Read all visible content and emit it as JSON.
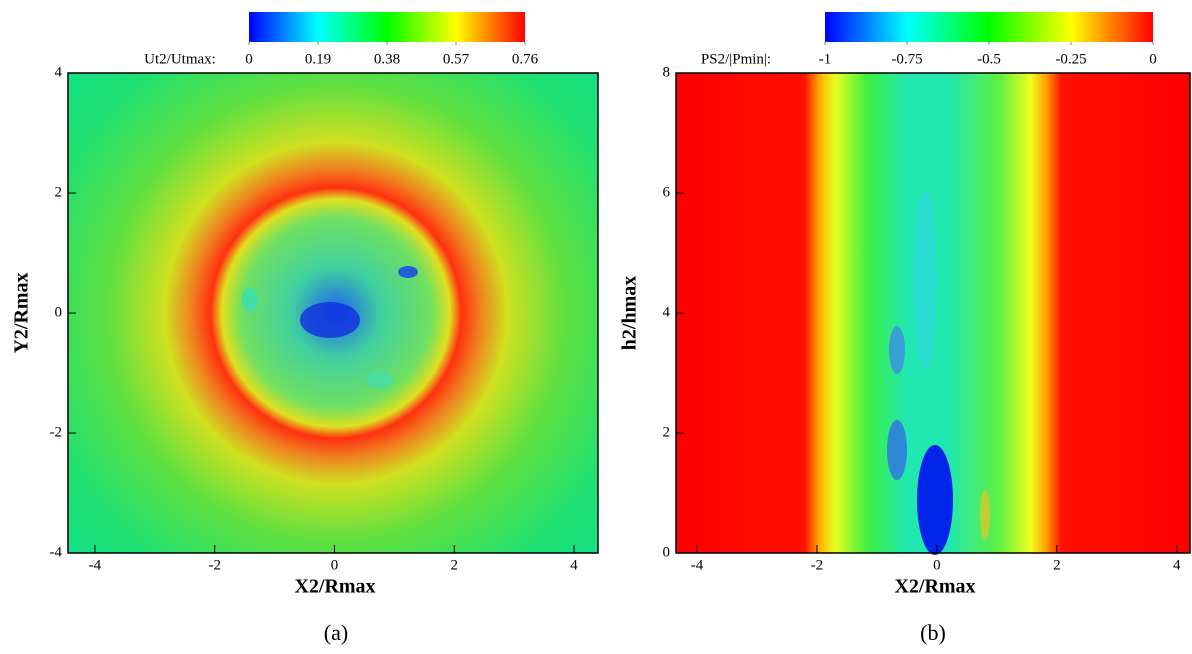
{
  "chart_data": [
    {
      "type": "contour",
      "colorbar_label": "Ut2/Utmax:",
      "clim": [
        0,
        0.76
      ],
      "cticks": [
        0,
        0.19,
        0.38,
        0.57,
        0.76
      ],
      "xlabel": "X2/Rmax",
      "ylabel": "Y2/Rmax",
      "xlim": [
        -4.45,
        4.4
      ],
      "ylim": [
        -4,
        4
      ],
      "xticks": [
        -4,
        -2,
        0,
        2,
        4
      ],
      "yticks": [
        -4,
        -2,
        0,
        2,
        4
      ],
      "caption": "(a)"
    },
    {
      "type": "contour",
      "colorbar_label": "PS2/|Pmin|:",
      "clim": [
        -1,
        0
      ],
      "cticks": [
        -1,
        -0.75,
        -0.5,
        -0.25,
        0
      ],
      "xlabel": "X2/Rmax",
      "ylabel": "h2/hmax",
      "xlim": [
        -4.35,
        4.22
      ],
      "ylim": [
        0,
        8
      ],
      "xticks": [
        -4,
        -2,
        0,
        2,
        4
      ],
      "yticks": [
        0,
        2,
        4,
        6,
        8
      ],
      "caption": "(b)"
    }
  ]
}
